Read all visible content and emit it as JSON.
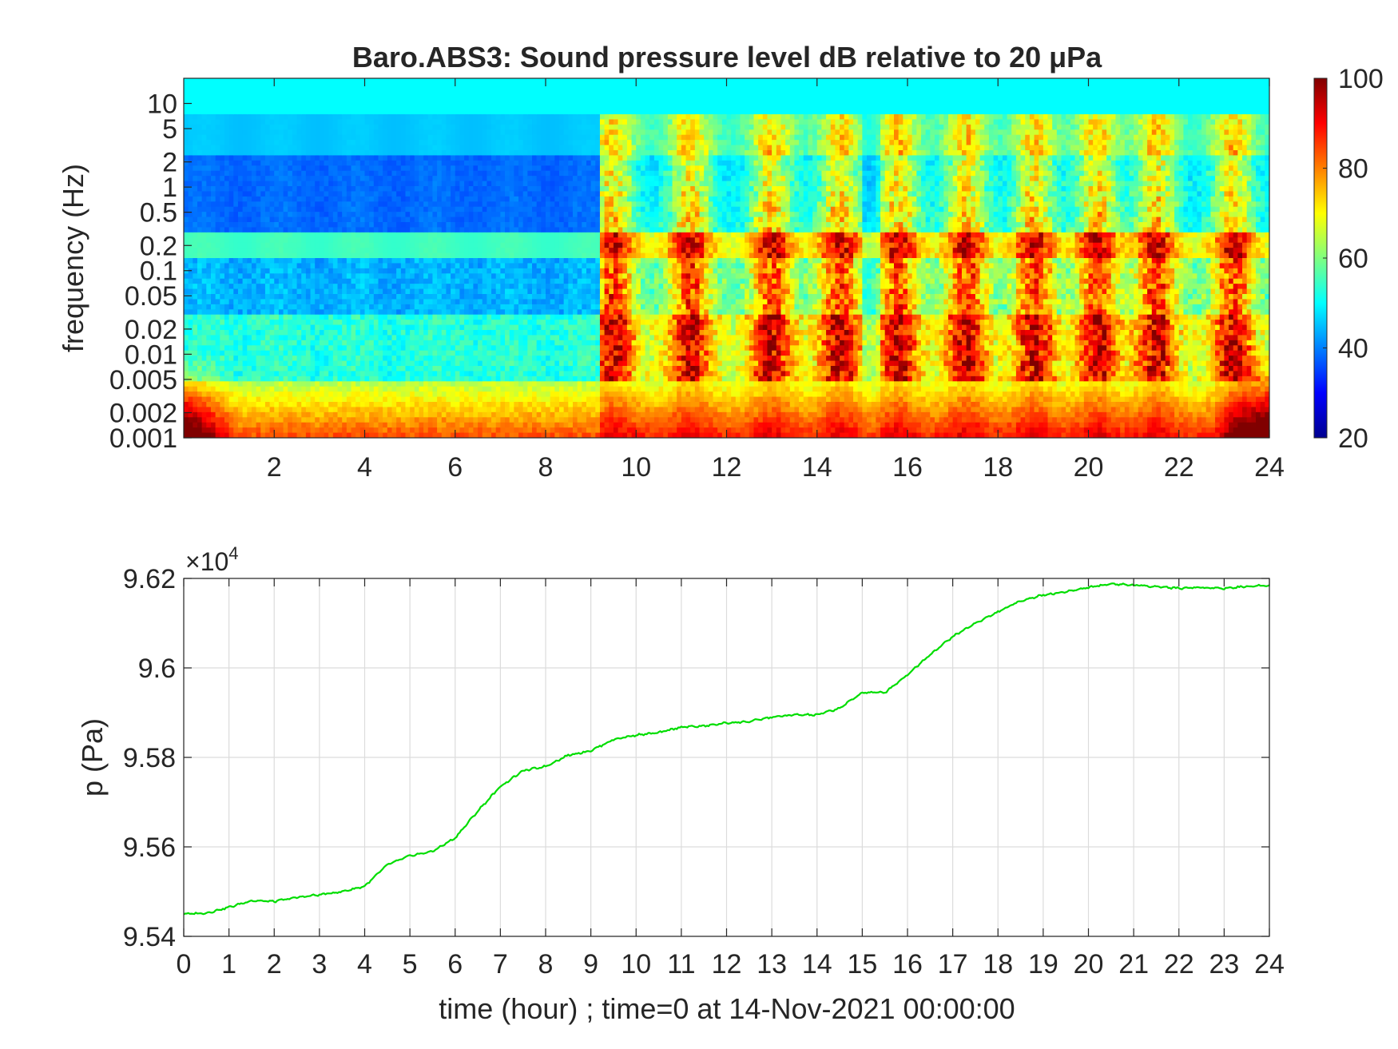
{
  "chart_data": [
    {
      "type": "heatmap",
      "title": "Baro.ABS3: Sound pressure level dB relative to 20 μPa",
      "xlabel": "",
      "ylabel": "frequency (Hz)",
      "xlim": [
        0,
        24
      ],
      "x_ticks": [
        "2",
        "4",
        "6",
        "8",
        "10",
        "12",
        "14",
        "16",
        "18",
        "20",
        "22",
        "24"
      ],
      "y_scale": "log",
      "ylim": [
        0.001,
        20
      ],
      "y_ticks": [
        "0.001",
        "0.002",
        "0.005",
        "0.01",
        "0.02",
        "0.05",
        "0.1",
        "0.2",
        "0.5",
        "1",
        "2",
        "5",
        "10"
      ],
      "colormap": "jet",
      "clim": [
        20,
        100
      ],
      "colorbar_ticks": [
        "20",
        "40",
        "60",
        "80",
        "100"
      ],
      "activity_bursts_hour": [
        9.5,
        11.2,
        13.0,
        14.5,
        15.8,
        17.3,
        18.8,
        20.2,
        21.5,
        23.2
      ],
      "grid": false
    },
    {
      "type": "line",
      "xlabel": "time (hour) ; time=0 at 14-Nov-2021 00:00:00",
      "ylabel": "p (Pa)",
      "xlim": [
        0,
        24
      ],
      "ylim": [
        95400,
        96200
      ],
      "y_multiplier_base": "×10",
      "y_multiplier_exponent": "4",
      "x_ticks": [
        "0",
        "1",
        "2",
        "3",
        "4",
        "5",
        "6",
        "7",
        "8",
        "9",
        "10",
        "11",
        "12",
        "13",
        "14",
        "15",
        "16",
        "17",
        "18",
        "19",
        "20",
        "21",
        "22",
        "23",
        "24"
      ],
      "y_ticks": [
        "9.54",
        "9.56",
        "9.58",
        "9.6",
        "9.62"
      ],
      "grid": true,
      "series": [
        {
          "color": "#00dd00",
          "x": [
            0,
            0.5,
            1,
            1.5,
            2,
            2.5,
            3,
            3.5,
            4,
            4.5,
            5,
            5.5,
            6,
            6.5,
            7,
            7.5,
            8,
            8.5,
            9,
            9.5,
            10,
            10.5,
            11,
            11.5,
            12,
            12.5,
            13,
            13.5,
            14,
            14.5,
            15,
            15.5,
            16,
            16.5,
            17,
            17.5,
            18,
            18.5,
            19,
            19.5,
            20,
            20.5,
            21,
            21.5,
            22,
            22.5,
            23,
            23.5,
            24
          ],
          "y": [
            95450,
            95452,
            95465,
            95480,
            95478,
            95487,
            95493,
            95500,
            95512,
            95560,
            95580,
            95590,
            95620,
            95680,
            95735,
            95770,
            95780,
            95805,
            95815,
            95840,
            95850,
            95855,
            95868,
            95870,
            95877,
            95880,
            95890,
            95895,
            95895,
            95910,
            95945,
            95945,
            95985,
            96030,
            96070,
            96100,
            96125,
            96150,
            96163,
            96170,
            96180,
            96188,
            96185,
            96182,
            96178,
            96180,
            96178,
            96182,
            96185
          ]
        }
      ]
    }
  ]
}
